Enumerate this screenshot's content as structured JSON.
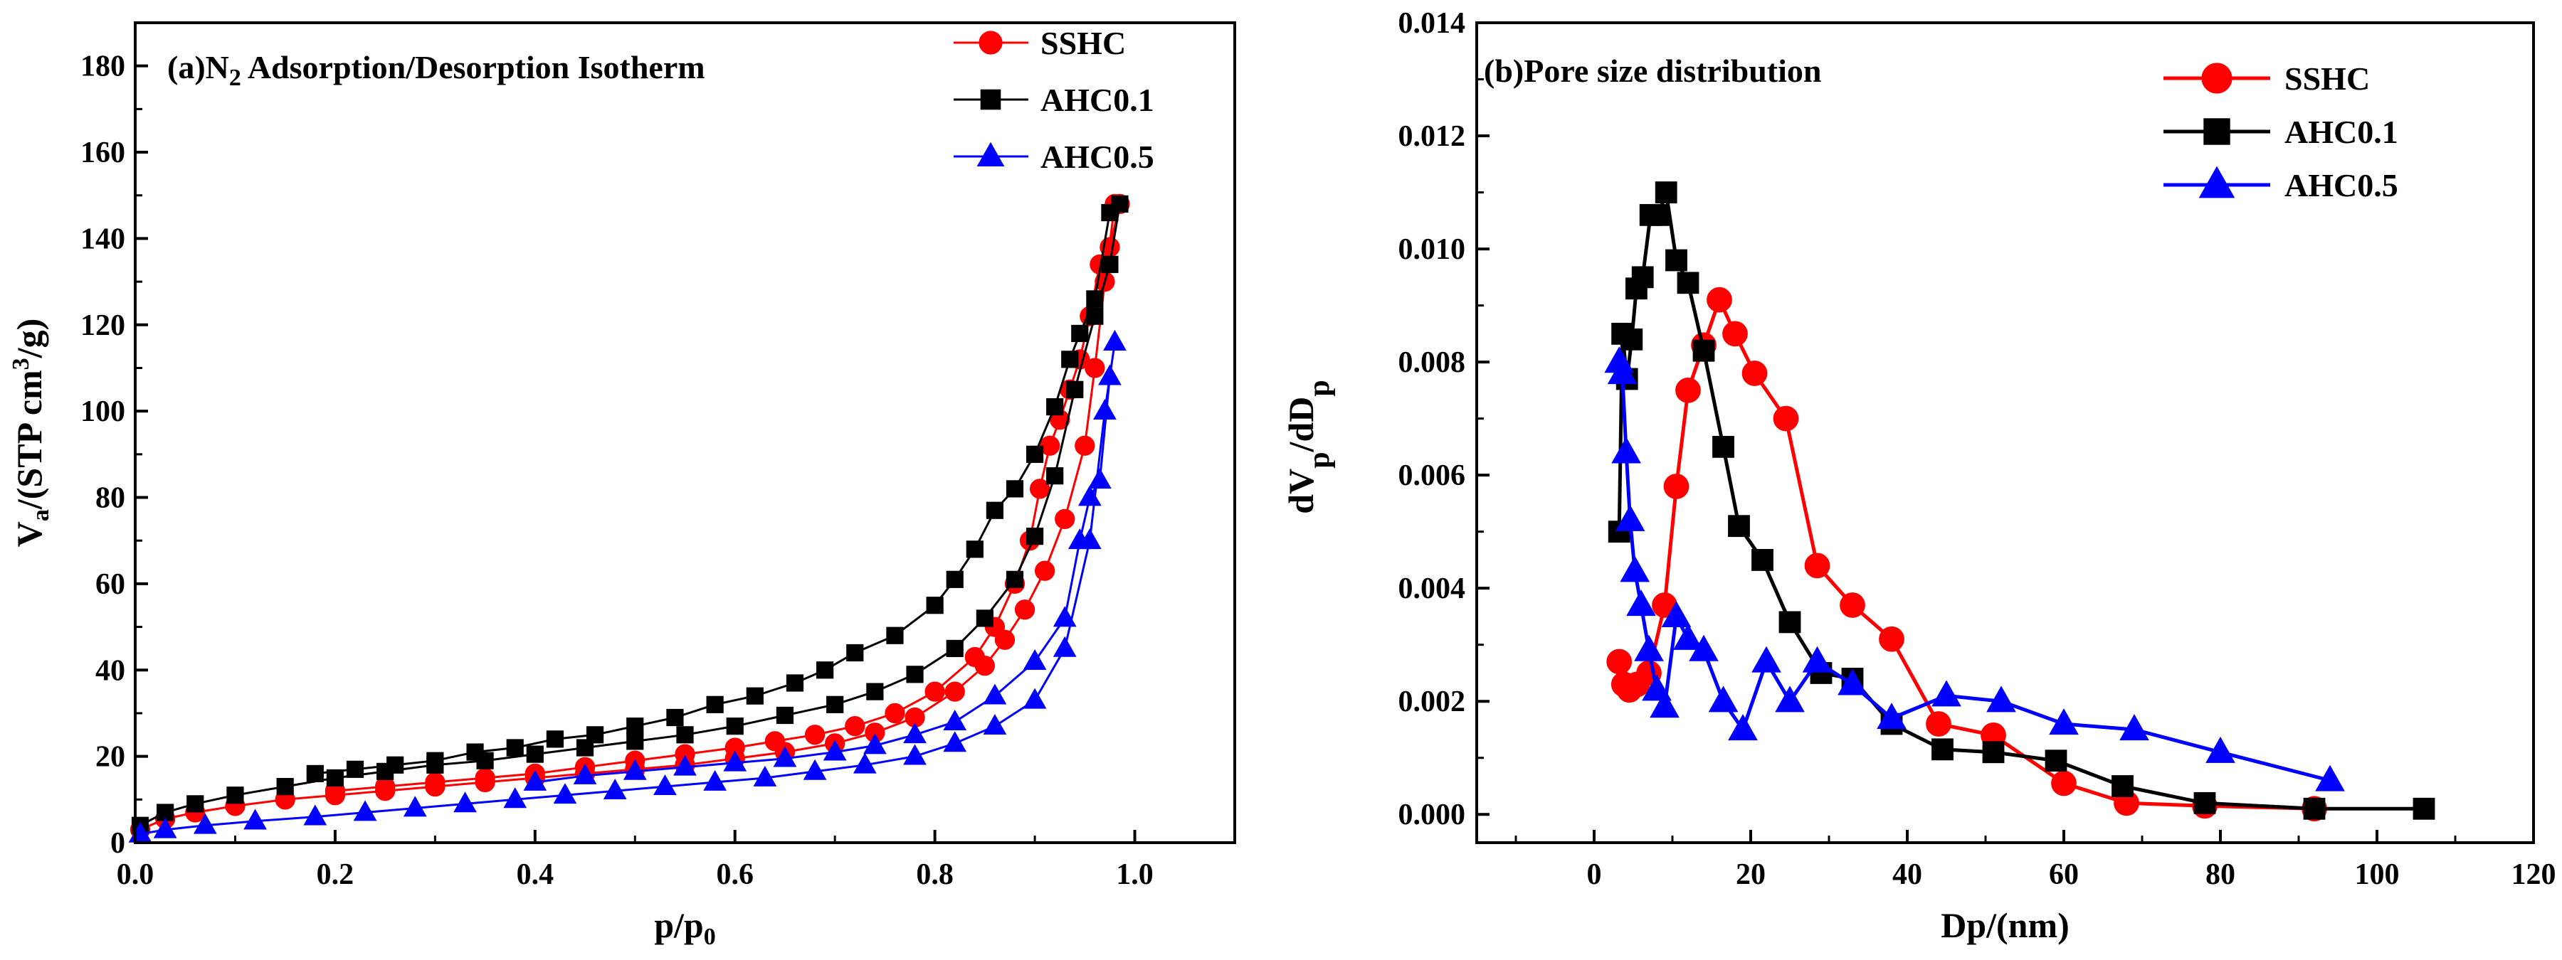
{
  "chart_data": [
    {
      "type": "line",
      "title": "(a)N₂ Adsorption/Desorption Isotherm",
      "title_parts": {
        "prefix": "(a)N",
        "subscript": "2",
        "suffix": " Adsorption/Desorption Isotherm"
      },
      "xlabel": "p/p₀",
      "xlabel_parts": {
        "base": "p/p",
        "subscript": "0"
      },
      "ylabel": "Vₐ/(STP cm³/g)",
      "ylabel_parts": {
        "base": "V",
        "subscript": "a",
        "mid": "/(STP cm",
        "superscript": "3",
        "end": "/g)"
      },
      "xlim": [
        0.0,
        1.1
      ],
      "ylim": [
        0,
        190
      ],
      "xticks": [
        0.0,
        0.2,
        0.4,
        0.6,
        0.8,
        1.0
      ],
      "xtick_labels": [
        "0.0",
        "0.2",
        "0.4",
        "0.6",
        "0.8",
        "1.0"
      ],
      "yticks": [
        0,
        20,
        40,
        60,
        80,
        100,
        120,
        140,
        160,
        180
      ],
      "ytick_labels": [
        "0",
        "20",
        "40",
        "60",
        "80",
        "100",
        "120",
        "140",
        "160",
        "180"
      ],
      "legend_position": "top-right",
      "series": [
        {
          "name": "SSHC",
          "color": "#ff0000",
          "marker": "circle",
          "adsorption": {
            "x": [
              0.005,
              0.03,
              0.06,
              0.1,
              0.15,
              0.2,
              0.25,
              0.3,
              0.35,
              0.4,
              0.45,
              0.5,
              0.55,
              0.6,
              0.65,
              0.7,
              0.74,
              0.78,
              0.82,
              0.85,
              0.87,
              0.89,
              0.91,
              0.93,
              0.95,
              0.96,
              0.97,
              0.98
            ],
            "y": [
              3,
              5.5,
              7,
              8.5,
              10,
              11,
              12,
              13,
              14,
              15,
              16,
              17,
              18,
              19.5,
              21,
              23,
              25.5,
              29,
              35,
              41,
              47,
              54,
              63,
              75,
              92,
              110,
              130,
              148
            ]
          },
          "desorption": {
            "x": [
              0.985,
              0.975,
              0.965,
              0.955,
              0.945,
              0.935,
              0.925,
              0.915,
              0.905,
              0.895,
              0.88,
              0.86,
              0.84,
              0.8,
              0.76,
              0.72,
              0.68,
              0.64,
              0.6,
              0.55,
              0.5,
              0.45,
              0.4,
              0.35,
              0.3,
              0.25,
              0.2
            ],
            "y": [
              148,
              138,
              134,
              122,
              112,
              105,
              98,
              92,
              82,
              70,
              60,
              50,
              43,
              35,
              30,
              27,
              25,
              23.5,
              22,
              20.5,
              19,
              17.5,
              16,
              15,
              14,
              13,
              12
            ]
          }
        },
        {
          "name": "AHC0.1",
          "color": "#000000",
          "marker": "square",
          "adsorption": {
            "x": [
              0.005,
              0.03,
              0.06,
              0.1,
              0.15,
              0.2,
              0.25,
              0.3,
              0.35,
              0.4,
              0.45,
              0.5,
              0.55,
              0.6,
              0.65,
              0.7,
              0.74,
              0.78,
              0.82,
              0.85,
              0.88,
              0.9,
              0.92,
              0.94,
              0.96,
              0.975,
              0.985
            ],
            "y": [
              4,
              7,
              9,
              11,
              13,
              15,
              16.5,
              18,
              19,
              20.5,
              22,
              23.5,
              25,
              27,
              29.5,
              32,
              35,
              39,
              45,
              52,
              61,
              71,
              85,
              105,
              122,
              134,
              148
            ]
          },
          "desorption": {
            "x": [
              0.975,
              0.96,
              0.945,
              0.935,
              0.92,
              0.9,
              0.88,
              0.86,
              0.84,
              0.82,
              0.8,
              0.76,
              0.72,
              0.69,
              0.66,
              0.62,
              0.58,
              0.54,
              0.5,
              0.46,
              0.42,
              0.38,
              0.34,
              0.3,
              0.26,
              0.22,
              0.18
            ],
            "y": [
              146,
              126,
              118,
              112,
              101,
              90,
              82,
              77,
              68,
              61,
              55,
              48,
              44,
              40,
              37,
              34,
              32,
              29,
              27,
              25,
              24,
              22,
              21,
              19,
              18,
              17,
              16
            ]
          }
        },
        {
          "name": "AHC0.5",
          "color": "#0000ff",
          "marker": "triangle",
          "adsorption": {
            "x": [
              0.005,
              0.03,
              0.07,
              0.12,
              0.18,
              0.23,
              0.28,
              0.33,
              0.38,
              0.43,
              0.48,
              0.53,
              0.58,
              0.63,
              0.68,
              0.73,
              0.78,
              0.82,
              0.86,
              0.9,
              0.93,
              0.955,
              0.97,
              0.98
            ],
            "y": [
              2,
              3,
              4,
              5,
              6,
              7,
              8,
              9,
              10,
              11,
              12,
              13,
              14,
              15,
              16.5,
              18,
              20,
              23,
              27,
              33,
              45,
              70,
              100,
              116
            ]
          },
          "desorption": {
            "x": [
              0.975,
              0.965,
              0.955,
              0.945,
              0.93,
              0.9,
              0.86,
              0.82,
              0.78,
              0.74,
              0.7,
              0.65,
              0.6,
              0.55,
              0.5,
              0.45,
              0.4
            ],
            "y": [
              108,
              84,
              80,
              70,
              52,
              42,
              34,
              28,
              25,
              22.5,
              21,
              19.5,
              18.5,
              17.5,
              16.5,
              15.5,
              14
            ]
          }
        }
      ]
    },
    {
      "type": "line",
      "title": "(b)Pore size distribution",
      "xlabel": "Dp/(nm)",
      "ylabel": "dVₚ/dDₚ",
      "ylabel_parts": {
        "a": "dV",
        "sub1": "p",
        "b": "/dD",
        "sub2": "p"
      },
      "xlim": [
        -15,
        120
      ],
      "ylim": [
        -0.0005,
        0.014
      ],
      "xticks": [
        0,
        20,
        40,
        60,
        80,
        100,
        120
      ],
      "xtick_labels": [
        "0",
        "20",
        "40",
        "60",
        "80",
        "100",
        "120"
      ],
      "yticks": [
        0.0,
        0.002,
        0.004,
        0.006,
        0.008,
        0.01,
        0.012,
        0.014
      ],
      "ytick_labels": [
        "0.000",
        "0.002",
        "0.004",
        "0.006",
        "0.008",
        "0.010",
        "0.012",
        "0.014"
      ],
      "legend_position": "top-right",
      "series": [
        {
          "name": "SSHC",
          "color": "#ff0000",
          "marker": "circle",
          "x": [
            3.2,
            3.8,
            4.5,
            5.5,
            7,
            9,
            10.5,
            12,
            14,
            16,
            18,
            20.5,
            24.5,
            28.5,
            33,
            38,
            44,
            51,
            60,
            68,
            78,
            92
          ],
          "y": [
            0.0027,
            0.0023,
            0.0022,
            0.0023,
            0.0025,
            0.0037,
            0.0058,
            0.0075,
            0.0083,
            0.0091,
            0.0085,
            0.0078,
            0.007,
            0.0044,
            0.0037,
            0.0031,
            0.0016,
            0.0014,
            0.00055,
            0.0002,
            0.00015,
            0.0001
          ]
        },
        {
          "name": "AHC0.1",
          "color": "#000000",
          "marker": "square",
          "x": [
            3.2,
            3.6,
            4.2,
            4.8,
            5.4,
            6.2,
            7.2,
            8.2,
            9.2,
            10.5,
            12,
            14,
            16.5,
            18.5,
            21.5,
            25,
            29,
            33,
            38,
            44.5,
            51,
            59,
            67.5,
            78,
            92,
            106
          ],
          "y": [
            0.005,
            0.0085,
            0.0077,
            0.0084,
            0.0093,
            0.0095,
            0.0106,
            0.0106,
            0.011,
            0.0098,
            0.0094,
            0.0082,
            0.0065,
            0.0051,
            0.0045,
            0.0034,
            0.0025,
            0.0024,
            0.0016,
            0.00115,
            0.0011,
            0.00095,
            0.0005,
            0.0002,
            0.0001,
            0.0001
          ]
        },
        {
          "name": "AHC0.5",
          "color": "#0000ff",
          "marker": "triangle",
          "x": [
            3.2,
            3.6,
            4.1,
            4.6,
            5.2,
            6,
            7,
            8,
            9,
            10.5,
            12,
            14,
            16.5,
            19,
            22,
            25,
            28.5,
            33,
            38,
            45,
            52,
            60,
            69,
            80,
            94
          ],
          "y": [
            0.008,
            0.0078,
            0.0064,
            0.0052,
            0.0043,
            0.0037,
            0.0029,
            0.0022,
            0.0019,
            0.0035,
            0.0031,
            0.0029,
            0.002,
            0.0015,
            0.0027,
            0.002,
            0.0027,
            0.0023,
            0.0017,
            0.0021,
            0.002,
            0.0016,
            0.0015,
            0.0011,
            0.0006
          ]
        }
      ]
    }
  ]
}
